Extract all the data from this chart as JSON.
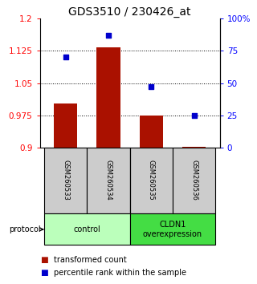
{
  "title": "GDS3510 / 230426_at",
  "samples": [
    "GSM260533",
    "GSM260534",
    "GSM260535",
    "GSM260536"
  ],
  "bar_values": [
    1.002,
    1.133,
    0.975,
    0.902
  ],
  "scatter_values": [
    70,
    87,
    47,
    25
  ],
  "bar_color": "#aa1100",
  "scatter_color": "#0000cc",
  "bar_bottom": 0.9,
  "ylim_left": [
    0.9,
    1.2
  ],
  "ylim_right": [
    0,
    100
  ],
  "yticks_left": [
    0.9,
    0.975,
    1.05,
    1.125,
    1.2
  ],
  "ytick_labels_left": [
    "0.9",
    "0.975",
    "1.05",
    "1.125",
    "1.2"
  ],
  "yticks_right": [
    0,
    25,
    50,
    75,
    100
  ],
  "ytick_labels_right": [
    "0",
    "25",
    "50",
    "75",
    "100%"
  ],
  "hlines": [
    0.975,
    1.05,
    1.125
  ],
  "control_color": "#bbffbb",
  "overexp_color": "#44dd44",
  "protocol_label": "protocol",
  "legend_bar_label": "transformed count",
  "legend_scatter_label": "percentile rank within the sample",
  "bar_width": 0.55,
  "title_fontsize": 10,
  "tick_fontsize": 7.5,
  "sample_fontsize": 6,
  "group_fontsize": 7,
  "legend_fontsize": 7
}
